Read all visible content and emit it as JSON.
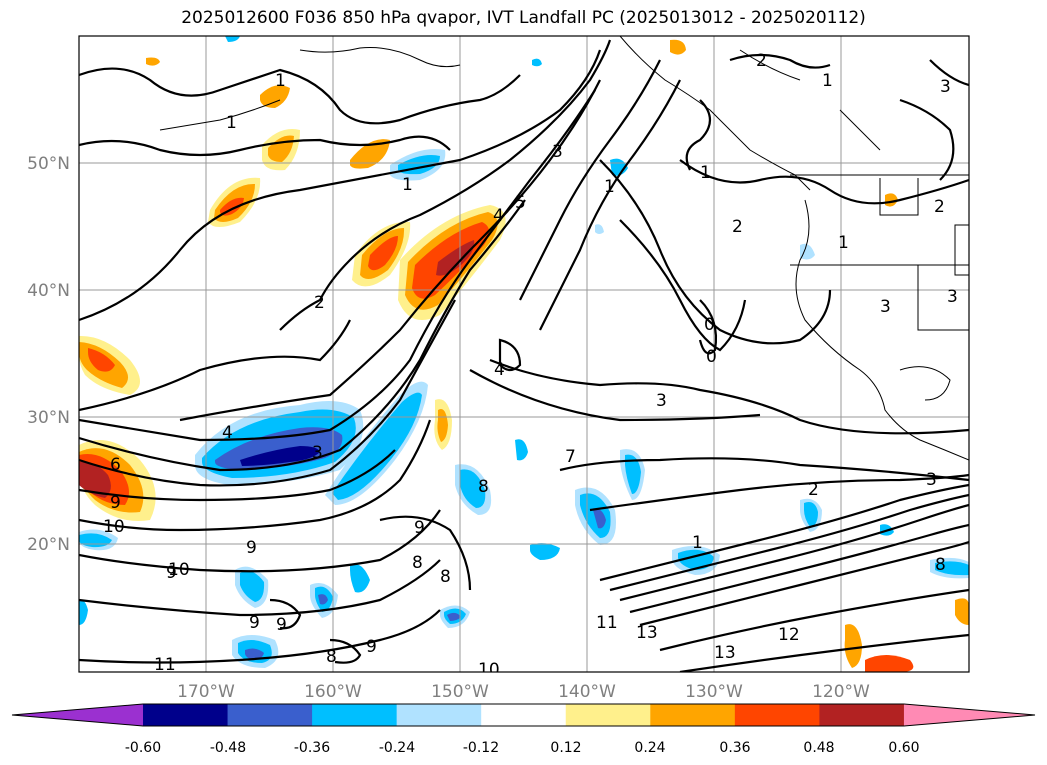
{
  "title": "2025012600 F036 850 hPa qvapor, IVT Landfall PC (2025013012 - 2025020112)",
  "map": {
    "lat_labels": [
      "50°N",
      "40°N",
      "30°N",
      "20°N"
    ],
    "lon_labels": [
      "170°W",
      "160°W",
      "150°W",
      "140°W",
      "130°W",
      "120°W"
    ],
    "contour_labels": [
      "1",
      "1",
      "1",
      "2",
      "1",
      "3",
      "4",
      "5",
      "1",
      "2",
      "2",
      "1",
      "2",
      "1",
      "3",
      "3",
      "0",
      "0",
      "4",
      "3",
      "4",
      "6",
      "9",
      "10",
      "3",
      "8",
      "9",
      "9",
      "8",
      "2",
      "7",
      "1",
      "8",
      "8",
      "9",
      "10",
      "9",
      "9",
      "8",
      "9",
      "10",
      "11",
      "13",
      "13",
      "12",
      "11",
      "3",
      "3"
    ]
  },
  "colorbar": {
    "ticks": [
      "-0.60",
      "-0.48",
      "-0.36",
      "-0.24",
      "-0.12",
      "0.12",
      "0.24",
      "0.36",
      "0.48",
      "0.60"
    ],
    "colors": [
      "#9b30d0",
      "#00008b",
      "#3a5fcd",
      "#00bfff",
      "#b0e2ff",
      "#ffffff",
      "#fff08c",
      "#ffa500",
      "#ff4500",
      "#b22222",
      "#ff8ab4"
    ]
  }
}
